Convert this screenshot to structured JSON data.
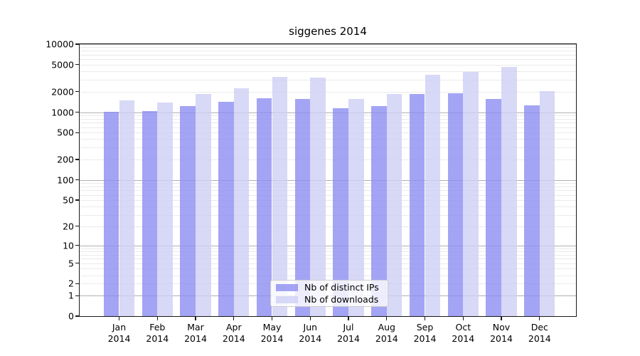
{
  "chart_data": {
    "type": "bar",
    "title": "siggenes 2014",
    "categories": [
      "Jan 2014",
      "Feb 2014",
      "Mar 2014",
      "Apr 2014",
      "May 2014",
      "Jun 2014",
      "Jul 2014",
      "Aug 2014",
      "Sep 2014",
      "Oct 2014",
      "Nov 2014",
      "Dec 2014"
    ],
    "series": [
      {
        "name": "Nb of distinct IPs",
        "color": "#8d8df1",
        "values": [
          1005,
          1030,
          1240,
          1430,
          1600,
          1550,
          1130,
          1240,
          1850,
          1890,
          1570,
          1260
        ]
      },
      {
        "name": "Nb of downloads",
        "color": "#cecef5",
        "values": [
          1480,
          1370,
          1860,
          2260,
          3330,
          3250,
          1560,
          1830,
          3530,
          3910,
          4600,
          2050
        ]
      }
    ],
    "yscale": "log1p",
    "ylim": [
      0,
      10000
    ],
    "yticks": [
      0,
      1,
      2,
      5,
      10,
      20,
      50,
      100,
      200,
      500,
      1000,
      2000,
      5000,
      10000
    ],
    "grid": true,
    "legend_position": "lower center",
    "colors": {
      "grid_major": "#b0b0b0",
      "grid_minor": "#eaeaea",
      "spine": "#1a1a1a",
      "text": "#000000",
      "legend_border": "#cccccc"
    }
  }
}
